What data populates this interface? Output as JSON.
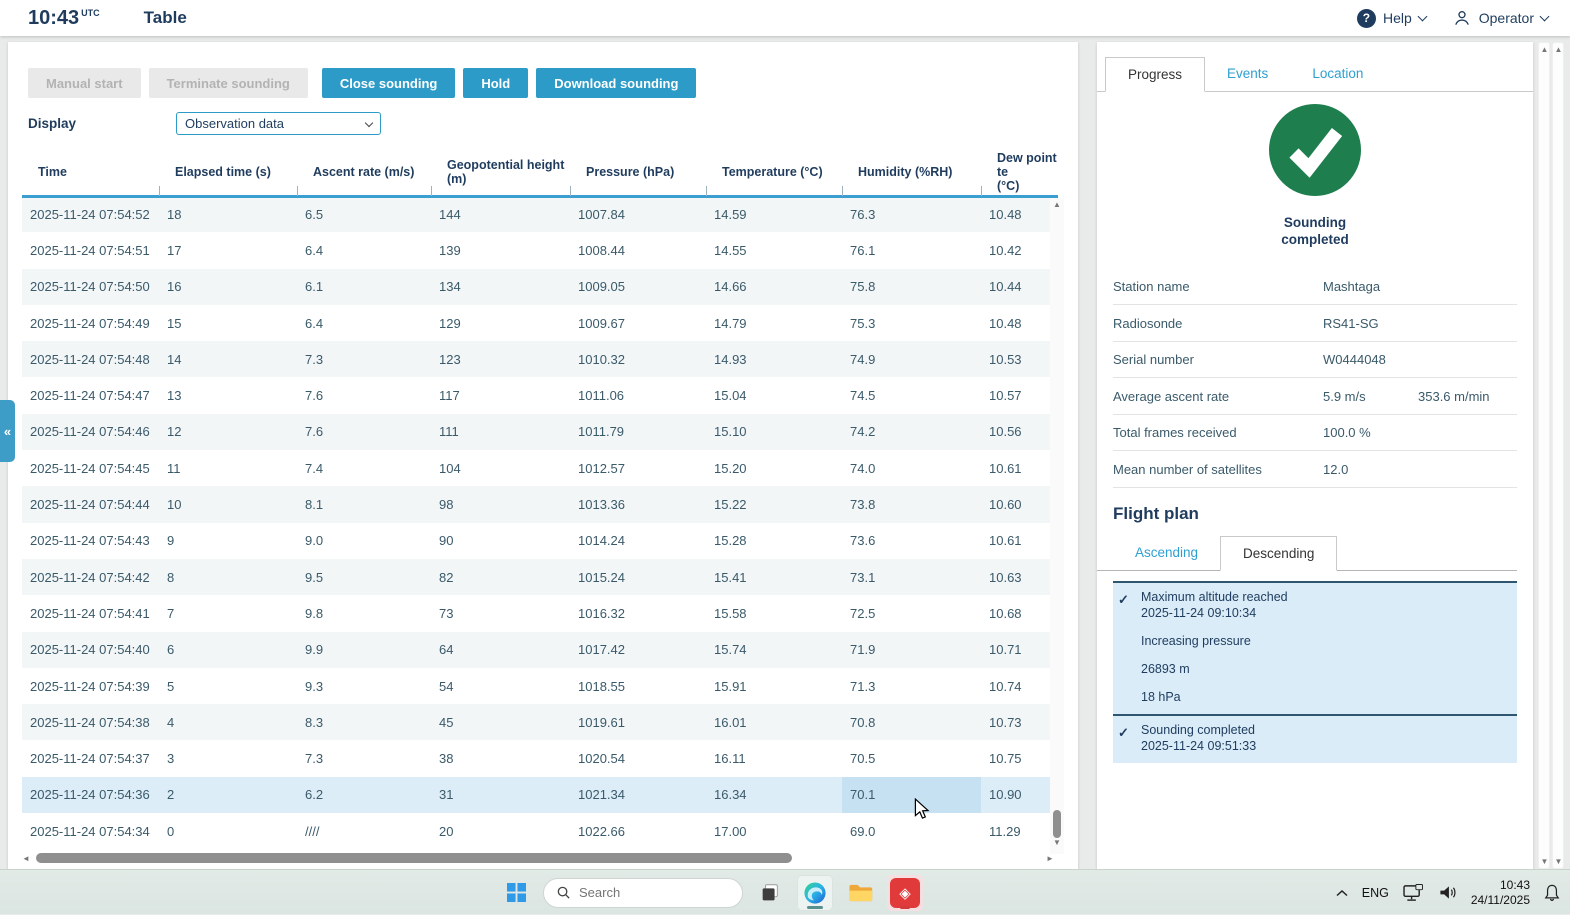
{
  "icons": {
    "collapse": "«",
    "check": "✓",
    "scroll_up": "▲",
    "scroll_down": "▼",
    "scroll_left": "◄",
    "scroll_right": "►"
  },
  "header": {
    "time": "10:43",
    "time_suffix": "UTC",
    "title": "Table",
    "help_label": "Help",
    "operator_label": "Operator"
  },
  "toolbar": {
    "buttons": [
      {
        "label": "Manual start",
        "state": "disabled"
      },
      {
        "label": "Terminate sounding",
        "state": "disabled"
      },
      {
        "label": "Close sounding",
        "state": "primary"
      },
      {
        "label": "Hold",
        "state": "primary"
      },
      {
        "label": "Download sounding",
        "state": "primary"
      }
    ],
    "display_label": "Display",
    "display_value": "Observation data"
  },
  "table": {
    "columns": [
      {
        "label": "Time"
      },
      {
        "label": "Elapsed time (s)"
      },
      {
        "label": "Ascent rate (m/s)"
      },
      {
        "label": "Geopotential height",
        "label2": "(m)"
      },
      {
        "label": "Pressure (hPa)"
      },
      {
        "label": "Temperature (°C)"
      },
      {
        "label": "Humidity (%RH)"
      },
      {
        "label": "Dew point te",
        "label2": "(°C)"
      }
    ],
    "rows": [
      [
        "2025-11-24 07:54:52",
        "18",
        "6.5",
        "144",
        "1007.84",
        "14.59",
        "76.3",
        "10.48"
      ],
      [
        "2025-11-24 07:54:51",
        "17",
        "6.4",
        "139",
        "1008.44",
        "14.55",
        "76.1",
        "10.42"
      ],
      [
        "2025-11-24 07:54:50",
        "16",
        "6.1",
        "134",
        "1009.05",
        "14.66",
        "75.8",
        "10.44"
      ],
      [
        "2025-11-24 07:54:49",
        "15",
        "6.4",
        "129",
        "1009.67",
        "14.79",
        "75.3",
        "10.48"
      ],
      [
        "2025-11-24 07:54:48",
        "14",
        "7.3",
        "123",
        "1010.32",
        "14.93",
        "74.9",
        "10.53"
      ],
      [
        "2025-11-24 07:54:47",
        "13",
        "7.6",
        "117",
        "1011.06",
        "15.04",
        "74.5",
        "10.57"
      ],
      [
        "2025-11-24 07:54:46",
        "12",
        "7.6",
        "111",
        "1011.79",
        "15.10",
        "74.2",
        "10.56"
      ],
      [
        "2025-11-24 07:54:45",
        "11",
        "7.4",
        "104",
        "1012.57",
        "15.20",
        "74.0",
        "10.61"
      ],
      [
        "2025-11-24 07:54:44",
        "10",
        "8.1",
        "98",
        "1013.36",
        "15.22",
        "73.8",
        "10.60"
      ],
      [
        "2025-11-24 07:54:43",
        "9",
        "9.0",
        "90",
        "1014.24",
        "15.28",
        "73.6",
        "10.61"
      ],
      [
        "2025-11-24 07:54:42",
        "8",
        "9.5",
        "82",
        "1015.24",
        "15.41",
        "73.1",
        "10.63"
      ],
      [
        "2025-11-24 07:54:41",
        "7",
        "9.8",
        "73",
        "1016.32",
        "15.58",
        "72.5",
        "10.68"
      ],
      [
        "2025-11-24 07:54:40",
        "6",
        "9.9",
        "64",
        "1017.42",
        "15.74",
        "71.9",
        "10.71"
      ],
      [
        "2025-11-24 07:54:39",
        "5",
        "9.3",
        "54",
        "1018.55",
        "15.91",
        "71.3",
        "10.74"
      ],
      [
        "2025-11-24 07:54:38",
        "4",
        "8.3",
        "45",
        "1019.61",
        "16.01",
        "70.8",
        "10.73"
      ],
      [
        "2025-11-24 07:54:37",
        "3",
        "7.3",
        "38",
        "1020.54",
        "16.11",
        "70.5",
        "10.75"
      ],
      [
        "2025-11-24 07:54:36",
        "2",
        "6.2",
        "31",
        "1021.34",
        "16.34",
        "70.1",
        "10.90"
      ],
      [
        "2025-11-24 07:54:34",
        "0",
        "////",
        "20",
        "1022.66",
        "17.00",
        "69.0",
        "11.29"
      ]
    ],
    "highlighted_row": 16,
    "highlighted_col": 6
  },
  "panel": {
    "tabs": [
      "Progress",
      "Events",
      "Location"
    ],
    "active_tab": "Progress",
    "status_line1": "Sounding",
    "status_line2": "completed",
    "info": [
      {
        "label": "Station name",
        "value": "Mashtaga",
        "value2": ""
      },
      {
        "label": "Radiosonde",
        "value": "RS41-SG",
        "value2": ""
      },
      {
        "label": "Serial number",
        "value": "W0444048",
        "value2": ""
      },
      {
        "label": "Average ascent rate",
        "value": "5.9 m/s",
        "value2": "353.6 m/min"
      },
      {
        "label": "Total frames received",
        "value": "100.0 %",
        "value2": ""
      },
      {
        "label": "Mean number of satellites",
        "value": "12.0",
        "value2": ""
      }
    ],
    "flight_plan": {
      "title": "Flight plan",
      "tabs": [
        "Ascending",
        "Descending"
      ],
      "active_tab": "Descending",
      "items": [
        {
          "checked": true,
          "title": "Maximum altitude reached",
          "timestamp": "2025-11-24 09:10:34",
          "details": [
            "Increasing pressure",
            "26893 m",
            "18 hPa"
          ]
        },
        {
          "checked": true,
          "title": "Sounding completed",
          "timestamp": "2025-11-24 09:51:33",
          "details": []
        }
      ]
    }
  },
  "taskbar": {
    "search_placeholder": "Search",
    "tray": {
      "lang": "ENG",
      "time": "10:43",
      "date": "24/11/2025"
    }
  },
  "colors": {
    "accent_blue": "#2d9bc7",
    "navy": "#1f3c5e",
    "green": "#1e7e4e",
    "link_blue": "#2f9fd0",
    "highlight_blue": "#d9ecf8",
    "hover_row": "#ddedf7",
    "hover_cell": "#c6e2f2"
  }
}
